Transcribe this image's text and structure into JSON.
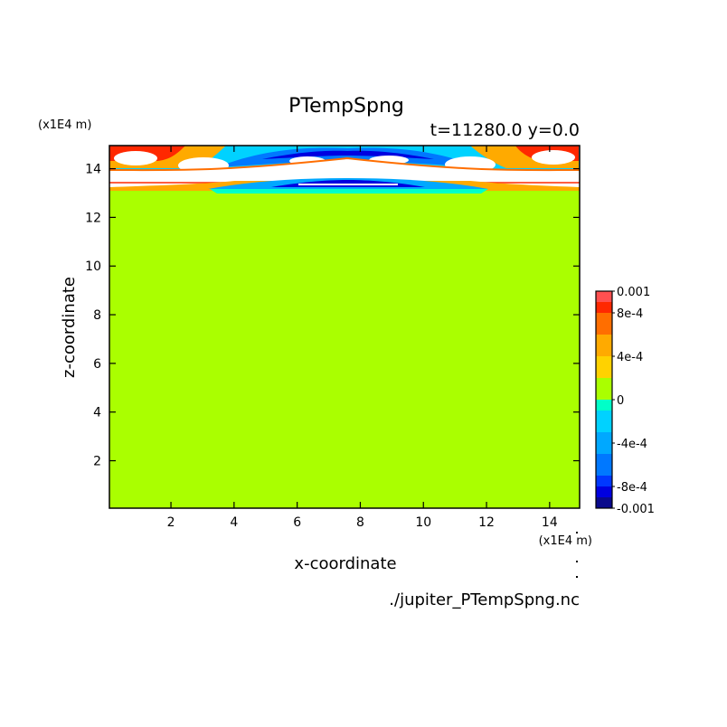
{
  "chart_data": {
    "type": "heatmap",
    "title": "PTempSpng",
    "subtitle": "t=11280.0 y=0.0",
    "xlabel": "x-coordinate",
    "ylabel": "z-coordinate",
    "x_unit": "(x1E4 m)",
    "y_unit": "(x1E4 m)",
    "source": "./jupiter_PTempSpng.nc",
    "xlim": [
      0.05,
      14.95
    ],
    "ylim": [
      0.05,
      14.95
    ],
    "xticks": [
      2,
      4,
      6,
      8,
      10,
      12,
      14
    ],
    "yticks": [
      2,
      4,
      6,
      8,
      10,
      12,
      14
    ],
    "background_value": 0,
    "colorbar": {
      "ticks": [
        "0.001",
        "8e-4",
        "4e-4",
        "0",
        "-4e-4",
        "-8e-4",
        "-0.001"
      ],
      "tick_values": [
        0.001,
        0.0008,
        0.0004,
        0,
        -0.0004,
        -0.0008,
        -0.001
      ],
      "levels": [
        {
          "from": -0.001,
          "to": -0.0009,
          "color": "#0a0a8c"
        },
        {
          "from": -0.0009,
          "to": -0.0008,
          "color": "#0000e0"
        },
        {
          "from": -0.0008,
          "to": -0.0007,
          "color": "#0038ff"
        },
        {
          "from": -0.0007,
          "to": -0.0005,
          "color": "#0078ff"
        },
        {
          "from": -0.0005,
          "to": -0.0003,
          "color": "#00a8ff"
        },
        {
          "from": -0.0003,
          "to": -0.0001,
          "color": "#00d2ff"
        },
        {
          "from": -0.0001,
          "to": 0.0,
          "color": "#00ffc8"
        },
        {
          "from": 0.0,
          "to": 0.0002,
          "color": "#aaff00"
        },
        {
          "from": 0.0002,
          "to": 0.0004,
          "color": "#ffd200"
        },
        {
          "from": 0.0004,
          "to": 0.0006,
          "color": "#ffaa00"
        },
        {
          "from": 0.0006,
          "to": 0.0008,
          "color": "#ff6e00"
        },
        {
          "from": 0.0008,
          "to": 0.0009,
          "color": "#ff2800"
        },
        {
          "from": 0.0009,
          "to": 0.001,
          "color": "#ff5050"
        }
      ]
    }
  }
}
